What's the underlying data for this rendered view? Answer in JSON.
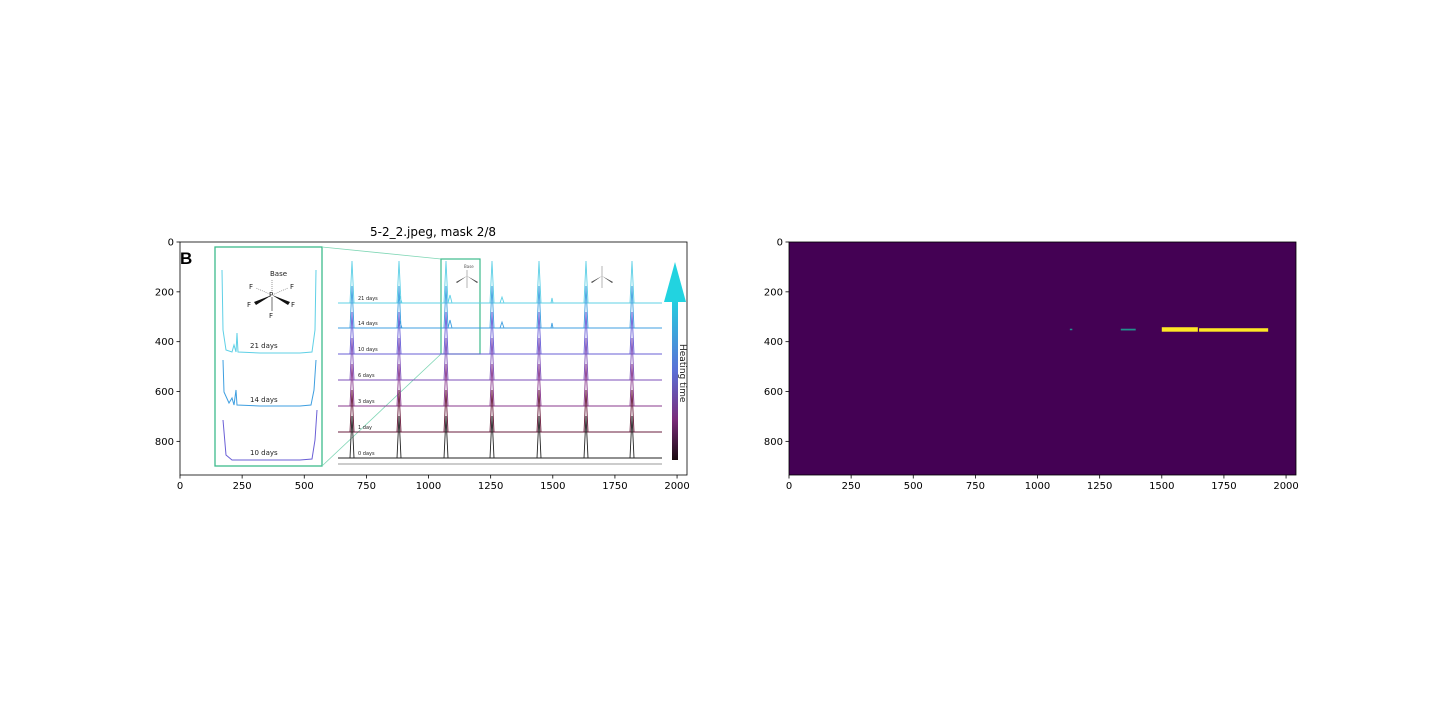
{
  "figure_title": "5-2_2.jpeg, mask 2/8",
  "colors": {
    "mask_background": "#440154",
    "mask_foreground": "#fde725",
    "mask_edge": "#21918c",
    "inset_box": "#3dbb8c",
    "arrow_top": "#22d3e0",
    "arrow_mid": "#5b6fd6",
    "arrow_bottom": "#2a0a14"
  },
  "embedded_figure": {
    "panel_letter": "B",
    "molecule_label": "Base",
    "atom_labels": [
      "F",
      "F",
      "F",
      "F",
      "F",
      "P"
    ],
    "colorbar_label": "Heating time",
    "spectra_labels": [
      "21 days",
      "14 days",
      "10 days",
      "6 days",
      "3 days",
      "1 day",
      "0 days"
    ],
    "spectra_colors": [
      "#5fd0e6",
      "#3f9fe0",
      "#6a5fd6",
      "#7e4fb8",
      "#8a3a8e",
      "#6a1c3c",
      "#222222"
    ],
    "inset_labels": [
      "21 days",
      "14 days",
      "10 days"
    ]
  },
  "chart_data": [
    {
      "type": "image",
      "title": "5-2_2.jpeg, mask 2/8",
      "xticks": [
        0,
        250,
        500,
        750,
        1000,
        1250,
        1500,
        1750,
        2000
      ],
      "yticks": [
        0,
        200,
        400,
        600,
        800
      ],
      "xlim": [
        0,
        2040
      ],
      "ylim": [
        935,
        0
      ],
      "grid": false
    },
    {
      "type": "heatmap",
      "title": "",
      "xticks": [
        0,
        250,
        500,
        750,
        1000,
        1250,
        1500,
        1750,
        2000
      ],
      "yticks": [
        0,
        200,
        400,
        600,
        800
      ],
      "xlim": [
        0,
        2040
      ],
      "ylim": [
        935,
        0
      ],
      "grid": false,
      "mask_regions": [
        {
          "x": [
            1130,
            1140
          ],
          "y": [
            348,
            354
          ],
          "value": 0.3
        },
        {
          "x": [
            1335,
            1395
          ],
          "y": [
            348,
            355
          ],
          "value": 0.5
        },
        {
          "x": [
            1500,
            1645
          ],
          "y": [
            342,
            360
          ],
          "value": 1
        },
        {
          "x": [
            1650,
            1928
          ],
          "y": [
            346,
            360
          ],
          "value": 1
        }
      ]
    }
  ]
}
